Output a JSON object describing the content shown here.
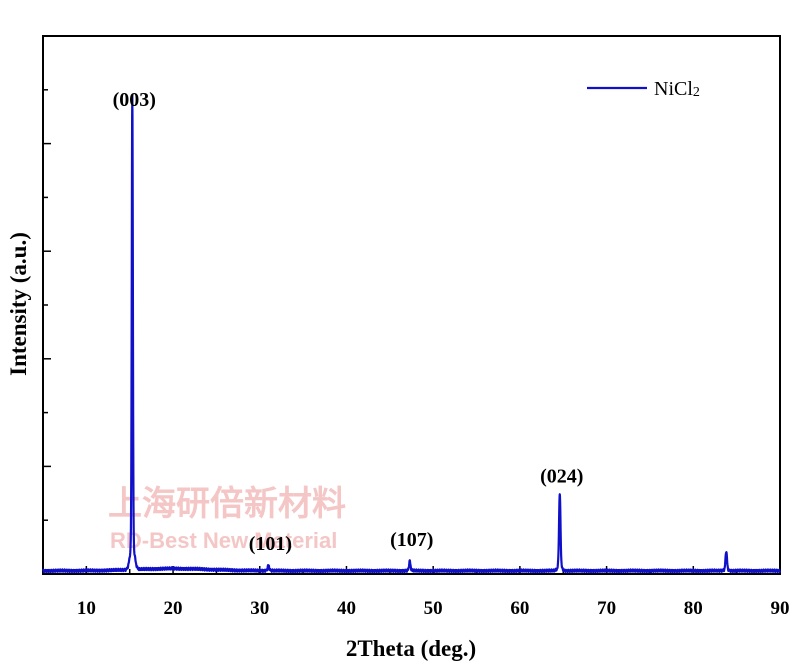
{
  "chart_data": {
    "type": "line",
    "title": "",
    "xlabel": "2Theta (deg.)",
    "ylabel": "Intensity (a.u.)",
    "xlim": [
      5,
      90
    ],
    "ylim": [
      0,
      100
    ],
    "xticks": [
      "10",
      "20",
      "30",
      "40",
      "50",
      "60",
      "70",
      "80",
      "90"
    ],
    "legend": {
      "position": "top-right"
    },
    "grid": false,
    "series": [
      {
        "name": "NiCl",
        "name_subscript": "2",
        "color": "#1010c8",
        "peaks": [
          {
            "x": 15.3,
            "y": 84.0
          },
          {
            "x": 31.0,
            "y": 1.5
          },
          {
            "x": 47.3,
            "y": 2.2
          },
          {
            "x": 64.6,
            "y": 14.0
          },
          {
            "x": 83.8,
            "y": 4.0
          }
        ],
        "baseline": 0.6
      }
    ],
    "annotations": [
      {
        "text": "(003)",
        "x": 15.3,
        "y": 84.0
      },
      {
        "text": "(101)",
        "x": 31.0,
        "y": 1.5
      },
      {
        "text": "(107)",
        "x": 47.3,
        "y": 2.2
      },
      {
        "text": "(024)",
        "x": 64.6,
        "y": 14.0
      }
    ]
  },
  "watermark": {
    "line1": "上海研倍新材料",
    "line2": "RD-Best New Material"
  }
}
